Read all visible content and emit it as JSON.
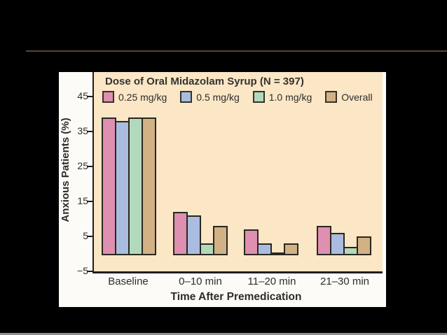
{
  "page": {
    "background": "#000000",
    "divider_color": "#5a4632",
    "bottom_edge_color": "#8f8f8f"
  },
  "panel": {
    "background": "#fcfbf7",
    "plot_background": "#fbe6c6",
    "axis_color": "#1f1f1f",
    "bar_border_color": "#2a281f"
  },
  "chart_data": {
    "type": "bar",
    "title": "Dose of Oral Midazolam Syrup (N = 397)",
    "ylabel": "Anxious Patients (%)",
    "xlabel": "Time After Premedication",
    "categories": [
      "Baseline",
      "0–10 min",
      "11–20 min",
      "21–30 min"
    ],
    "series": [
      {
        "name": "0.25 mg/kg",
        "color": "#df8fb0",
        "values": [
          39,
          12,
          7,
          8
        ]
      },
      {
        "name": "0.5 mg/kg",
        "color": "#aabde0",
        "values": [
          38,
          11,
          3,
          6
        ]
      },
      {
        "name": "1.0 mg/kg",
        "color": "#b3d9bc",
        "values": [
          39,
          3,
          0.5,
          2
        ]
      },
      {
        "name": "Overall",
        "color": "#d2b184",
        "values": [
          39,
          8,
          3,
          5
        ]
      }
    ],
    "yticks": [
      45,
      35,
      25,
      15,
      5,
      -5
    ],
    "ylim": [
      -5,
      52
    ],
    "grid": false,
    "legend_position": "top-left-inside"
  }
}
